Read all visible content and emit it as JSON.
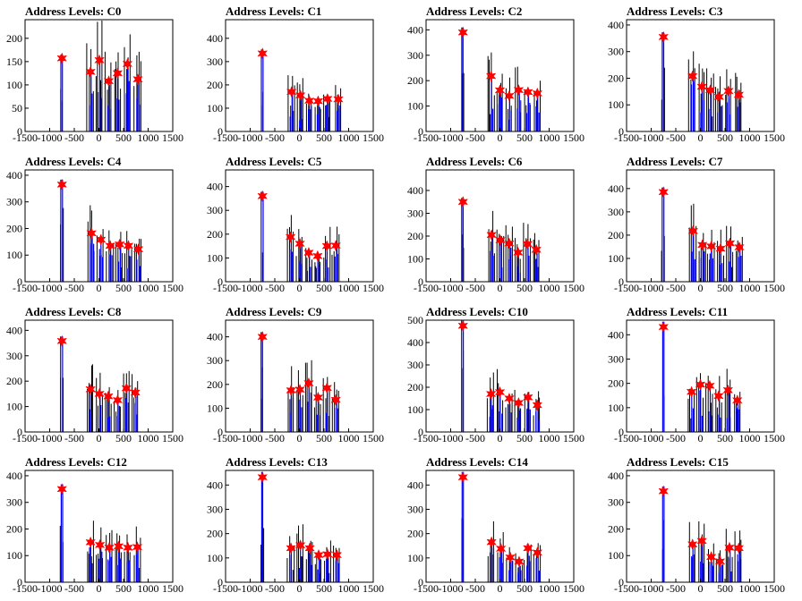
{
  "colors": {
    "hist_black": "#000000",
    "hist_blue": "#0000ff",
    "marker": "#ff0000",
    "axis": "#000000"
  },
  "chart_data": [
    {
      "type": "bar",
      "title": "Address Levels: C0",
      "xlim": [
        -1500,
        1500
      ],
      "xticks": [
        "-1500",
        "-1000",
        "-500",
        "0",
        "500",
        "1000",
        "1500"
      ],
      "ylim": [
        0,
        240
      ],
      "yticks": [
        "0",
        "50",
        "100",
        "150",
        "200"
      ],
      "yvals": [
        0,
        50,
        100,
        150,
        200
      ],
      "peaks": [
        {
          "x": -750,
          "y": 157
        },
        {
          "x": -170,
          "y": 128
        },
        {
          "x": 10,
          "y": 153
        },
        {
          "x": 200,
          "y": 108
        },
        {
          "x": 380,
          "y": 125
        },
        {
          "x": 580,
          "y": 145
        },
        {
          "x": 790,
          "y": 112
        }
      ]
    },
    {
      "type": "bar",
      "title": "Address Levels: C1",
      "xlim": [
        -1500,
        1500
      ],
      "xticks": [
        "-1500",
        "-1000",
        "-500",
        "0",
        "500",
        "1000",
        "1500"
      ],
      "ylim": [
        0,
        480
      ],
      "yticks": [
        "0",
        "100",
        "200",
        "300",
        "400"
      ],
      "yvals": [
        0,
        100,
        200,
        300,
        400
      ],
      "peaks": [
        {
          "x": -750,
          "y": 335
        },
        {
          "x": -160,
          "y": 170
        },
        {
          "x": 20,
          "y": 155
        },
        {
          "x": 200,
          "y": 132
        },
        {
          "x": 380,
          "y": 130
        },
        {
          "x": 570,
          "y": 140
        },
        {
          "x": 790,
          "y": 138
        }
      ]
    },
    {
      "type": "bar",
      "title": "Address Levels: C2",
      "xlim": [
        -1500,
        1500
      ],
      "xticks": [
        "-1500",
        "-1000",
        "-500",
        "0",
        "500",
        "1000",
        "1500"
      ],
      "ylim": [
        0,
        440
      ],
      "yticks": [
        "0",
        "100",
        "200",
        "300",
        "400"
      ],
      "yvals": [
        0,
        100,
        200,
        300,
        400
      ],
      "peaks": [
        {
          "x": -750,
          "y": 390
        },
        {
          "x": -180,
          "y": 218
        },
        {
          "x": 0,
          "y": 162
        },
        {
          "x": 190,
          "y": 140
        },
        {
          "x": 380,
          "y": 163
        },
        {
          "x": 570,
          "y": 155
        },
        {
          "x": 760,
          "y": 150
        }
      ]
    },
    {
      "type": "bar",
      "title": "Address Levels: C3",
      "xlim": [
        -1500,
        1500
      ],
      "xticks": [
        "-1500",
        "-1000",
        "-500",
        "0",
        "500",
        "1000",
        "1500"
      ],
      "ylim": [
        0,
        420
      ],
      "yticks": [
        "0",
        "100",
        "200",
        "300",
        "400"
      ],
      "yvals": [
        0,
        100,
        200,
        300,
        400
      ],
      "peaks": [
        {
          "x": -750,
          "y": 355
        },
        {
          "x": -160,
          "y": 208
        },
        {
          "x": 30,
          "y": 168
        },
        {
          "x": 200,
          "y": 155
        },
        {
          "x": 380,
          "y": 130
        },
        {
          "x": 570,
          "y": 152
        },
        {
          "x": 780,
          "y": 138
        }
      ]
    },
    {
      "type": "bar",
      "title": "Address Levels: C4",
      "xlim": [
        -1500,
        1500
      ],
      "xticks": [
        "-1500",
        "-1000",
        "-500",
        "0",
        "500",
        "1000",
        "1500"
      ],
      "ylim": [
        0,
        420
      ],
      "yticks": [
        "0",
        "100",
        "200",
        "300",
        "400"
      ],
      "yvals": [
        0,
        100,
        200,
        300,
        400
      ],
      "peaks": [
        {
          "x": -750,
          "y": 365
        },
        {
          "x": -150,
          "y": 182
        },
        {
          "x": 40,
          "y": 158
        },
        {
          "x": 230,
          "y": 135
        },
        {
          "x": 420,
          "y": 140
        },
        {
          "x": 600,
          "y": 135
        },
        {
          "x": 800,
          "y": 122
        }
      ]
    },
    {
      "type": "bar",
      "title": "Address Levels: C5",
      "xlim": [
        -1500,
        1500
      ],
      "xticks": [
        "-1500",
        "-1000",
        "-500",
        "0",
        "500",
        "1000",
        "1500"
      ],
      "ylim": [
        0,
        470
      ],
      "yticks": [
        "0",
        "100",
        "200",
        "300",
        "400"
      ],
      "yvals": [
        0,
        100,
        200,
        300,
        400
      ],
      "peaks": [
        {
          "x": -750,
          "y": 360
        },
        {
          "x": -180,
          "y": 188
        },
        {
          "x": 10,
          "y": 160
        },
        {
          "x": 190,
          "y": 122
        },
        {
          "x": 370,
          "y": 108
        },
        {
          "x": 560,
          "y": 150
        },
        {
          "x": 740,
          "y": 152
        }
      ]
    },
    {
      "type": "bar",
      "title": "Address Levels: C6",
      "xlim": [
        -1500,
        1500
      ],
      "xticks": [
        "-1500",
        "-1000",
        "-500",
        "0",
        "500",
        "1000",
        "1500"
      ],
      "ylim": [
        0,
        490
      ],
      "yticks": [
        "0",
        "100",
        "200",
        "300",
        "400"
      ],
      "yvals": [
        0,
        100,
        200,
        300,
        400
      ],
      "peaks": [
        {
          "x": -750,
          "y": 350
        },
        {
          "x": -170,
          "y": 205
        },
        {
          "x": 10,
          "y": 182
        },
        {
          "x": 190,
          "y": 168
        },
        {
          "x": 370,
          "y": 128
        },
        {
          "x": 560,
          "y": 165
        },
        {
          "x": 740,
          "y": 140
        }
      ]
    },
    {
      "type": "bar",
      "title": "Address Levels: C7",
      "xlim": [
        -1500,
        1500
      ],
      "xticks": [
        "-1500",
        "-1000",
        "-500",
        "0",
        "500",
        "1000",
        "1500"
      ],
      "ylim": [
        0,
        480
      ],
      "yticks": [
        "0",
        "100",
        "200",
        "300",
        "400"
      ],
      "yvals": [
        0,
        100,
        200,
        300,
        400
      ],
      "peaks": [
        {
          "x": -750,
          "y": 385
        },
        {
          "x": -150,
          "y": 218
        },
        {
          "x": 40,
          "y": 158
        },
        {
          "x": 220,
          "y": 152
        },
        {
          "x": 410,
          "y": 142
        },
        {
          "x": 600,
          "y": 165
        },
        {
          "x": 790,
          "y": 148
        }
      ]
    },
    {
      "type": "bar",
      "title": "Address Levels: C8",
      "xlim": [
        -1500,
        1500
      ],
      "xticks": [
        "-1500",
        "-1000",
        "-500",
        "0",
        "500",
        "1000",
        "1500"
      ],
      "ylim": [
        0,
        440
      ],
      "yticks": [
        "0",
        "100",
        "200",
        "300",
        "400"
      ],
      "yvals": [
        0,
        100,
        200,
        300,
        400
      ],
      "peaks": [
        {
          "x": -750,
          "y": 358
        },
        {
          "x": -170,
          "y": 168
        },
        {
          "x": 10,
          "y": 150
        },
        {
          "x": 190,
          "y": 140
        },
        {
          "x": 380,
          "y": 125
        },
        {
          "x": 560,
          "y": 172
        },
        {
          "x": 740,
          "y": 155
        }
      ]
    },
    {
      "type": "bar",
      "title": "Address Levels: C9",
      "xlim": [
        -1500,
        1500
      ],
      "xticks": [
        "-1500",
        "-1000",
        "-500",
        "0",
        "500",
        "1000",
        "1500"
      ],
      "ylim": [
        0,
        470
      ],
      "yticks": [
        "0",
        "100",
        "200",
        "300",
        "400"
      ],
      "yvals": [
        0,
        100,
        200,
        300,
        400
      ],
      "peaks": [
        {
          "x": -750,
          "y": 400
        },
        {
          "x": -170,
          "y": 175
        },
        {
          "x": 10,
          "y": 178
        },
        {
          "x": 190,
          "y": 205
        },
        {
          "x": 380,
          "y": 145
        },
        {
          "x": 560,
          "y": 185
        },
        {
          "x": 740,
          "y": 135
        }
      ]
    },
    {
      "type": "bar",
      "title": "Address Levels: C10",
      "xlim": [
        -1500,
        1500
      ],
      "xticks": [
        "-1500",
        "-1000",
        "-500",
        "0",
        "500",
        "1000",
        "1500"
      ],
      "ylim": [
        0,
        500
      ],
      "yticks": [
        "0",
        "100",
        "200",
        "300",
        "400",
        "500"
      ],
      "yvals": [
        0,
        100,
        200,
        300,
        400,
        500
      ],
      "peaks": [
        {
          "x": -750,
          "y": 475
        },
        {
          "x": -180,
          "y": 170
        },
        {
          "x": 0,
          "y": 178
        },
        {
          "x": 190,
          "y": 150
        },
        {
          "x": 380,
          "y": 130
        },
        {
          "x": 570,
          "y": 155
        },
        {
          "x": 760,
          "y": 120
        }
      ]
    },
    {
      "type": "bar",
      "title": "Address Levels: C11",
      "xlim": [
        -1500,
        1500
      ],
      "xticks": [
        "-1500",
        "-1000",
        "-500",
        "0",
        "500",
        "1000",
        "1500"
      ],
      "ylim": [
        0,
        460
      ],
      "yticks": [
        "0",
        "100",
        "200",
        "300",
        "400"
      ],
      "yvals": [
        0,
        100,
        200,
        300,
        400
      ],
      "peaks": [
        {
          "x": -750,
          "y": 432
        },
        {
          "x": -180,
          "y": 165
        },
        {
          "x": 0,
          "y": 195
        },
        {
          "x": 190,
          "y": 190
        },
        {
          "x": 370,
          "y": 148
        },
        {
          "x": 560,
          "y": 172
        },
        {
          "x": 750,
          "y": 130
        }
      ]
    },
    {
      "type": "bar",
      "title": "Address Levels: C12",
      "xlim": [
        -1500,
        1500
      ],
      "xticks": [
        "-1500",
        "-1000",
        "-500",
        "0",
        "500",
        "1000",
        "1500"
      ],
      "ylim": [
        0,
        420
      ],
      "yticks": [
        "0",
        "100",
        "200",
        "300",
        "400"
      ],
      "yvals": [
        0,
        100,
        200,
        300,
        400
      ],
      "peaks": [
        {
          "x": -750,
          "y": 350
        },
        {
          "x": -170,
          "y": 150
        },
        {
          "x": 20,
          "y": 140
        },
        {
          "x": 210,
          "y": 130
        },
        {
          "x": 400,
          "y": 135
        },
        {
          "x": 590,
          "y": 130
        },
        {
          "x": 780,
          "y": 132
        }
      ]
    },
    {
      "type": "bar",
      "title": "Address Levels: C13",
      "xlim": [
        -1500,
        1500
      ],
      "xticks": [
        "-1500",
        "-1000",
        "-500",
        "0",
        "500",
        "1000",
        "1500"
      ],
      "ylim": [
        0,
        460
      ],
      "yticks": [
        "0",
        "100",
        "200",
        "300",
        "400"
      ],
      "yvals": [
        0,
        100,
        200,
        300,
        400
      ],
      "peaks": [
        {
          "x": -750,
          "y": 432
        },
        {
          "x": -170,
          "y": 140
        },
        {
          "x": 20,
          "y": 152
        },
        {
          "x": 210,
          "y": 140
        },
        {
          "x": 390,
          "y": 112
        },
        {
          "x": 570,
          "y": 115
        },
        {
          "x": 760,
          "y": 112
        }
      ]
    },
    {
      "type": "bar",
      "title": "Address Levels: C14",
      "xlim": [
        -1500,
        1500
      ],
      "xticks": [
        "-1500",
        "-1000",
        "-500",
        "0",
        "500",
        "1000",
        "1500"
      ],
      "ylim": [
        0,
        460
      ],
      "yticks": [
        "0",
        "100",
        "200",
        "300",
        "400"
      ],
      "yvals": [
        0,
        100,
        200,
        300,
        400
      ],
      "peaks": [
        {
          "x": -750,
          "y": 432
        },
        {
          "x": -170,
          "y": 165
        },
        {
          "x": 20,
          "y": 138
        },
        {
          "x": 210,
          "y": 102
        },
        {
          "x": 390,
          "y": 85
        },
        {
          "x": 570,
          "y": 140
        },
        {
          "x": 760,
          "y": 122
        }
      ]
    },
    {
      "type": "bar",
      "title": "Address Levels: C15",
      "xlim": [
        -1500,
        1500
      ],
      "xticks": [
        "-1500",
        "-1000",
        "-500",
        "0",
        "500",
        "1000",
        "1500"
      ],
      "ylim": [
        0,
        420
      ],
      "yticks": [
        "0",
        "100",
        "200",
        "300",
        "400"
      ],
      "yvals": [
        0,
        100,
        200,
        300,
        400
      ],
      "peaks": [
        {
          "x": -750,
          "y": 342
        },
        {
          "x": -160,
          "y": 142
        },
        {
          "x": 30,
          "y": 155
        },
        {
          "x": 220,
          "y": 95
        },
        {
          "x": 400,
          "y": 78
        },
        {
          "x": 590,
          "y": 130
        },
        {
          "x": 780,
          "y": 128
        }
      ]
    }
  ]
}
